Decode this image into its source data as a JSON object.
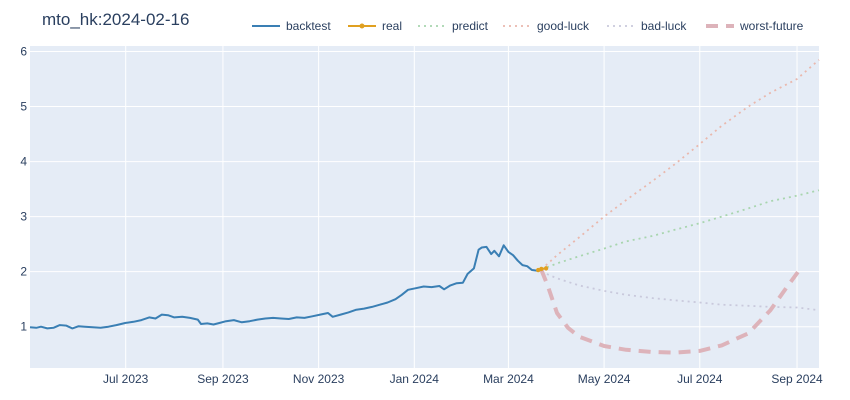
{
  "chart_data": {
    "type": "line",
    "title": "mto_hk:2024-02-16",
    "xlabel": "",
    "ylabel": "",
    "x_range": [
      "2023-05-01",
      "2024-09-15"
    ],
    "ylim": [
      0.25,
      6.1
    ],
    "grid": true,
    "legend_position": "top",
    "x_ticks": [
      {
        "date": "2023-07-01",
        "label": "Jul 2023"
      },
      {
        "date": "2023-09-01",
        "label": "Sep 2023"
      },
      {
        "date": "2023-11-01",
        "label": "Nov 2023"
      },
      {
        "date": "2024-01-01",
        "label": "Jan 2024"
      },
      {
        "date": "2024-03-01",
        "label": "Mar 2024"
      },
      {
        "date": "2024-05-01",
        "label": "May 2024"
      },
      {
        "date": "2024-07-01",
        "label": "Jul 2024"
      },
      {
        "date": "2024-09-01",
        "label": "Sep 2024"
      }
    ],
    "y_ticks": [
      {
        "value": 1,
        "label": "1"
      },
      {
        "value": 2,
        "label": "2"
      },
      {
        "value": 3,
        "label": "3"
      },
      {
        "value": 4,
        "label": "4"
      },
      {
        "value": 5,
        "label": "5"
      },
      {
        "value": 6,
        "label": "6"
      }
    ],
    "series": [
      {
        "name": "backtest",
        "color": "#3a7fb4",
        "style": "solid",
        "points": [
          [
            "2023-05-01",
            0.99
          ],
          [
            "2023-05-05",
            0.98
          ],
          [
            "2023-05-08",
            1.0
          ],
          [
            "2023-05-12",
            0.97
          ],
          [
            "2023-05-16",
            0.98
          ],
          [
            "2023-05-20",
            1.03
          ],
          [
            "2023-05-24",
            1.02
          ],
          [
            "2023-05-28",
            0.97
          ],
          [
            "2023-06-01",
            1.01
          ],
          [
            "2023-06-05",
            1.0
          ],
          [
            "2023-06-10",
            0.99
          ],
          [
            "2023-06-15",
            0.98
          ],
          [
            "2023-06-20",
            1.0
          ],
          [
            "2023-06-25",
            1.03
          ],
          [
            "2023-07-01",
            1.07
          ],
          [
            "2023-07-06",
            1.09
          ],
          [
            "2023-07-11",
            1.12
          ],
          [
            "2023-07-16",
            1.17
          ],
          [
            "2023-07-20",
            1.15
          ],
          [
            "2023-07-24",
            1.22
          ],
          [
            "2023-07-28",
            1.21
          ],
          [
            "2023-08-01",
            1.17
          ],
          [
            "2023-08-06",
            1.18
          ],
          [
            "2023-08-11",
            1.16
          ],
          [
            "2023-08-16",
            1.13
          ],
          [
            "2023-08-18",
            1.05
          ],
          [
            "2023-08-22",
            1.06
          ],
          [
            "2023-08-26",
            1.04
          ],
          [
            "2023-08-30",
            1.07
          ],
          [
            "2023-09-03",
            1.1
          ],
          [
            "2023-09-08",
            1.12
          ],
          [
            "2023-09-13",
            1.08
          ],
          [
            "2023-09-18",
            1.1
          ],
          [
            "2023-09-23",
            1.13
          ],
          [
            "2023-09-28",
            1.15
          ],
          [
            "2023-10-03",
            1.16
          ],
          [
            "2023-10-08",
            1.15
          ],
          [
            "2023-10-13",
            1.14
          ],
          [
            "2023-10-18",
            1.17
          ],
          [
            "2023-10-23",
            1.16
          ],
          [
            "2023-10-28",
            1.19
          ],
          [
            "2023-11-02",
            1.22
          ],
          [
            "2023-11-07",
            1.25
          ],
          [
            "2023-11-10",
            1.18
          ],
          [
            "2023-11-15",
            1.22
          ],
          [
            "2023-11-20",
            1.26
          ],
          [
            "2023-11-25",
            1.31
          ],
          [
            "2023-11-30",
            1.33
          ],
          [
            "2023-12-05",
            1.36
          ],
          [
            "2023-12-10",
            1.4
          ],
          [
            "2023-12-15",
            1.44
          ],
          [
            "2023-12-20",
            1.5
          ],
          [
            "2023-12-24",
            1.58
          ],
          [
            "2023-12-28",
            1.67
          ],
          [
            "2024-01-02",
            1.7
          ],
          [
            "2024-01-07",
            1.73
          ],
          [
            "2024-01-12",
            1.72
          ],
          [
            "2024-01-17",
            1.74
          ],
          [
            "2024-01-20",
            1.68
          ],
          [
            "2024-01-24",
            1.75
          ],
          [
            "2024-01-28",
            1.79
          ],
          [
            "2024-02-01",
            1.8
          ],
          [
            "2024-02-04",
            1.96
          ],
          [
            "2024-02-08",
            2.06
          ],
          [
            "2024-02-11",
            2.4
          ],
          [
            "2024-02-13",
            2.44
          ],
          [
            "2024-02-16",
            2.45
          ],
          [
            "2024-02-19",
            2.32
          ],
          [
            "2024-02-21",
            2.38
          ],
          [
            "2024-02-24",
            2.28
          ],
          [
            "2024-02-27",
            2.48
          ],
          [
            "2024-03-01",
            2.36
          ],
          [
            "2024-03-04",
            2.3
          ],
          [
            "2024-03-07",
            2.2
          ],
          [
            "2024-03-10",
            2.12
          ],
          [
            "2024-03-13",
            2.1
          ],
          [
            "2024-03-16",
            2.03
          ],
          [
            "2024-03-19",
            2.02
          ],
          [
            "2024-03-22",
            2.04
          ]
        ]
      },
      {
        "name": "real",
        "color": "#e0a020",
        "style": "solid-markers",
        "points": [
          [
            "2024-03-20",
            2.03
          ],
          [
            "2024-03-22",
            2.05
          ],
          [
            "2024-03-25",
            2.06
          ]
        ]
      },
      {
        "name": "predict",
        "color": "#a8d5ae",
        "style": "dotted",
        "points": [
          [
            "2024-03-22",
            2.04
          ],
          [
            "2024-04-01",
            2.15
          ],
          [
            "2024-04-15",
            2.28
          ],
          [
            "2024-05-01",
            2.42
          ],
          [
            "2024-05-15",
            2.55
          ],
          [
            "2024-06-01",
            2.65
          ],
          [
            "2024-06-15",
            2.76
          ],
          [
            "2024-07-01",
            2.88
          ],
          [
            "2024-07-15",
            3.0
          ],
          [
            "2024-08-01",
            3.15
          ],
          [
            "2024-08-15",
            3.28
          ],
          [
            "2024-09-01",
            3.38
          ],
          [
            "2024-09-15",
            3.48
          ]
        ]
      },
      {
        "name": "good-luck",
        "color": "#e9b8ad",
        "style": "dotted",
        "points": [
          [
            "2024-03-22",
            2.04
          ],
          [
            "2024-04-01",
            2.3
          ],
          [
            "2024-04-15",
            2.62
          ],
          [
            "2024-05-01",
            3.0
          ],
          [
            "2024-05-15",
            3.3
          ],
          [
            "2024-06-01",
            3.65
          ],
          [
            "2024-06-15",
            3.95
          ],
          [
            "2024-07-01",
            4.32
          ],
          [
            "2024-07-15",
            4.65
          ],
          [
            "2024-08-01",
            5.0
          ],
          [
            "2024-08-15",
            5.25
          ],
          [
            "2024-09-01",
            5.5
          ],
          [
            "2024-09-15",
            5.85
          ]
        ]
      },
      {
        "name": "bad-luck",
        "color": "#c9c9dc",
        "style": "dotted",
        "points": [
          [
            "2024-03-22",
            2.0
          ],
          [
            "2024-04-01",
            1.88
          ],
          [
            "2024-04-15",
            1.75
          ],
          [
            "2024-05-01",
            1.65
          ],
          [
            "2024-05-15",
            1.58
          ],
          [
            "2024-06-01",
            1.52
          ],
          [
            "2024-06-15",
            1.48
          ],
          [
            "2024-07-01",
            1.44
          ],
          [
            "2024-07-15",
            1.4
          ],
          [
            "2024-08-01",
            1.38
          ],
          [
            "2024-08-15",
            1.36
          ],
          [
            "2024-09-01",
            1.35
          ],
          [
            "2024-09-15",
            1.3
          ]
        ]
      },
      {
        "name": "worst-future",
        "color": "#ddb3ba",
        "style": "dashed-thick",
        "points": [
          [
            "2024-03-22",
            2.03
          ],
          [
            "2024-03-26",
            1.75
          ],
          [
            "2024-04-01",
            1.25
          ],
          [
            "2024-04-08",
            0.98
          ],
          [
            "2024-04-15",
            0.82
          ],
          [
            "2024-05-01",
            0.65
          ],
          [
            "2024-05-15",
            0.58
          ],
          [
            "2024-06-01",
            0.54
          ],
          [
            "2024-06-15",
            0.53
          ],
          [
            "2024-07-01",
            0.56
          ],
          [
            "2024-07-15",
            0.66
          ],
          [
            "2024-08-01",
            0.88
          ],
          [
            "2024-08-15",
            1.3
          ],
          [
            "2024-08-25",
            1.7
          ],
          [
            "2024-09-03",
            2.05
          ]
        ]
      }
    ]
  }
}
